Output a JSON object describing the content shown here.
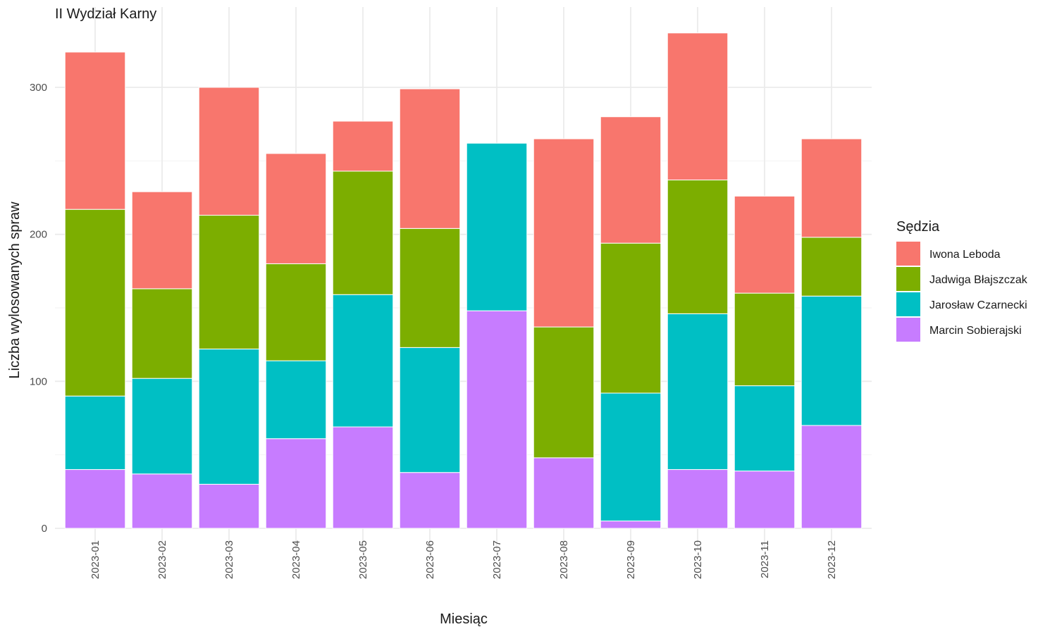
{
  "chart_data": {
    "type": "bar",
    "stacked": true,
    "title": "II Wydział Karny",
    "xlabel": "Miesiąc",
    "ylabel": "Liczba wylosowanych spraw",
    "ylim": [
      0,
      340
    ],
    "yticks": [
      0,
      100,
      200,
      300
    ],
    "grid": true,
    "legend_title": "Sędzia",
    "legend_position": "right",
    "categories": [
      "2023-01",
      "2023-02",
      "2023-03",
      "2023-04",
      "2023-05",
      "2023-06",
      "2023-07",
      "2023-08",
      "2023-09",
      "2023-10",
      "2023-11",
      "2023-12"
    ],
    "series": [
      {
        "name": "Marcin Sobierajski",
        "color": "#C77CFF",
        "values": [
          40,
          37,
          30,
          61,
          69,
          38,
          148,
          48,
          5,
          40,
          39,
          70
        ]
      },
      {
        "name": "Jarosław Czarnecki",
        "color": "#00BFC4",
        "values": [
          50,
          65,
          92,
          53,
          90,
          85,
          114,
          0,
          87,
          106,
          58,
          88
        ]
      },
      {
        "name": "Jadwiga Błajszczak",
        "color": "#7CAE00",
        "values": [
          127,
          61,
          91,
          66,
          84,
          81,
          0,
          89,
          102,
          91,
          63,
          40
        ]
      },
      {
        "name": "Iwona Leboda",
        "color": "#F8766D",
        "values": [
          107,
          66,
          87,
          75,
          34,
          95,
          0,
          128,
          86,
          100,
          66,
          67
        ]
      }
    ],
    "legend_order": [
      "Iwona Leboda",
      "Jadwiga Błajszczak",
      "Jarosław Czarnecki",
      "Marcin Sobierajski"
    ]
  }
}
